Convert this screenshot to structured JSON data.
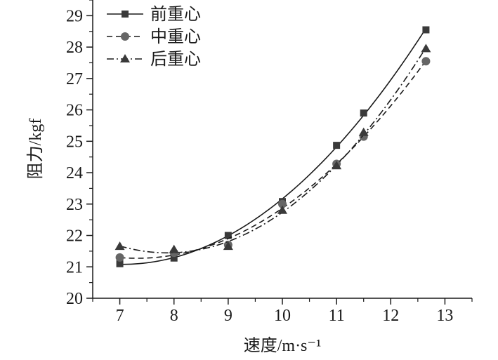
{
  "chart_data": {
    "type": "line",
    "xlabel": "速度/m·s⁻¹",
    "ylabel": "阻力/kgf",
    "xlim": [
      6.5,
      13.5
    ],
    "ylim": [
      20,
      29.5
    ],
    "x_ticks": [
      7,
      8,
      9,
      10,
      11,
      12,
      13
    ],
    "y_ticks": [
      20,
      21,
      22,
      23,
      24,
      25,
      26,
      27,
      28,
      29
    ],
    "grid": false,
    "legend_position": "top-left",
    "series": [
      {
        "name": "前重心",
        "marker": "square",
        "line_style": "solid",
        "x": [
          7,
          8,
          9,
          10,
          11,
          11.5,
          12.65
        ],
        "y": [
          21.1,
          21.28,
          22.0,
          23.08,
          24.87,
          25.9,
          28.55
        ]
      },
      {
        "name": "中重心",
        "marker": "circle",
        "line_style": "dashed",
        "x": [
          7,
          8,
          9,
          10,
          11,
          11.5,
          12.65
        ],
        "y": [
          21.3,
          21.45,
          21.7,
          23.0,
          24.28,
          25.15,
          27.55
        ]
      },
      {
        "name": "后重心",
        "marker": "triangle",
        "line_style": "dash-dot",
        "x": [
          7,
          8,
          9,
          10,
          11,
          11.5,
          12.65
        ],
        "y": [
          21.65,
          21.55,
          21.65,
          22.8,
          24.22,
          25.28,
          27.95
        ]
      }
    ],
    "colors": {
      "line": "#1a1a1a",
      "marker": "#3a3a3a",
      "circle_marker": "#666666"
    }
  }
}
